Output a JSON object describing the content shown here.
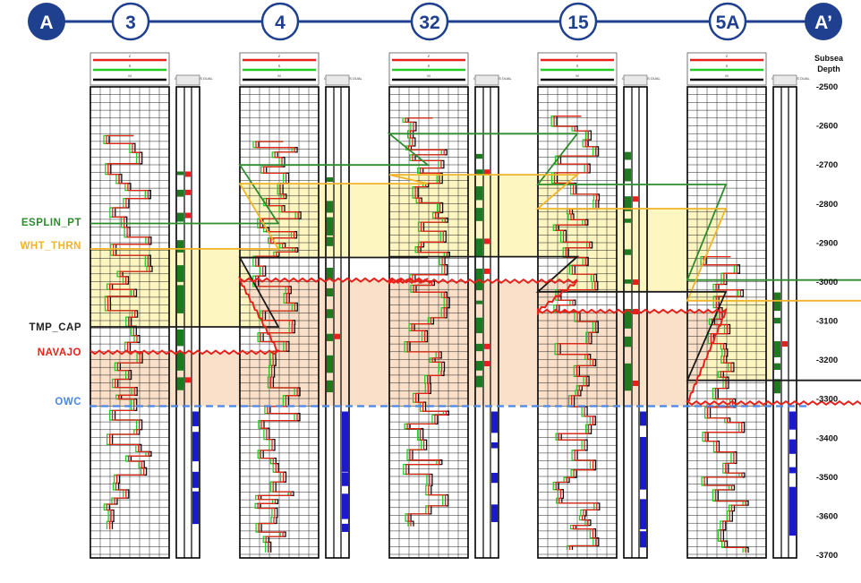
{
  "header": {
    "wells": [
      {
        "label": "A",
        "kind": "endpoint"
      },
      {
        "label": "3",
        "kind": "well"
      },
      {
        "label": "4",
        "kind": "well"
      },
      {
        "label": "32",
        "kind": "well"
      },
      {
        "label": "15",
        "kind": "well"
      },
      {
        "label": "5A",
        "kind": "well"
      },
      {
        "label": "A’",
        "kind": "endpoint"
      }
    ]
  },
  "track_header": {
    "curve_codes": [
      "Z",
      "S",
      "M"
    ],
    "column_label": "OIL WATER GAS DUAL"
  },
  "depth_axis": {
    "title_line1": "Subsea",
    "title_line2": "Depth",
    "min": -2500,
    "max": -3700,
    "tick_labels": [
      "-2500",
      "-2600",
      "-2700",
      "-2800",
      "-2900",
      "-3000",
      "-3100",
      "-3200",
      "-3300",
      "-3400",
      "-3500",
      "-3600",
      "-3700"
    ]
  },
  "formations": [
    {
      "name": "ESPLIN_PT",
      "color": "#2e8b2e",
      "depths": [
        -2850,
        -2700,
        -2620,
        -2750,
        -2995
      ]
    },
    {
      "name": "WHT_THRN",
      "color": "#f0b429",
      "depths": [
        -2915,
        -2748,
        -2725,
        -2812,
        -3048
      ]
    },
    {
      "name": "TMP_CAP",
      "color": "#1a1a1a",
      "depths": [
        -3115,
        -2937,
        -2935,
        -3025,
        -3252
      ]
    },
    {
      "name": "NAVAJO",
      "color": "#e8201a",
      "depths": [
        -3180,
        -2995,
        -2998,
        -3075,
        -3310
      ]
    },
    {
      "name": "OWC",
      "color": "#4a86e8",
      "depths": [
        -3318,
        -3318,
        -3318,
        -3318,
        -3318
      ]
    }
  ],
  "colors": {
    "header_fill": "#1f3f8f",
    "well_circle_stroke": "#1f3f8f",
    "zone_yellow": "#fdf6c0",
    "zone_orange": "#fae0c8",
    "curve_red": "#e8201a",
    "curve_green": "#22cc22",
    "curve_black": "#111111",
    "oil": "#1e7a1e",
    "gas": "#e8201a",
    "water": "#1a1acc"
  }
}
